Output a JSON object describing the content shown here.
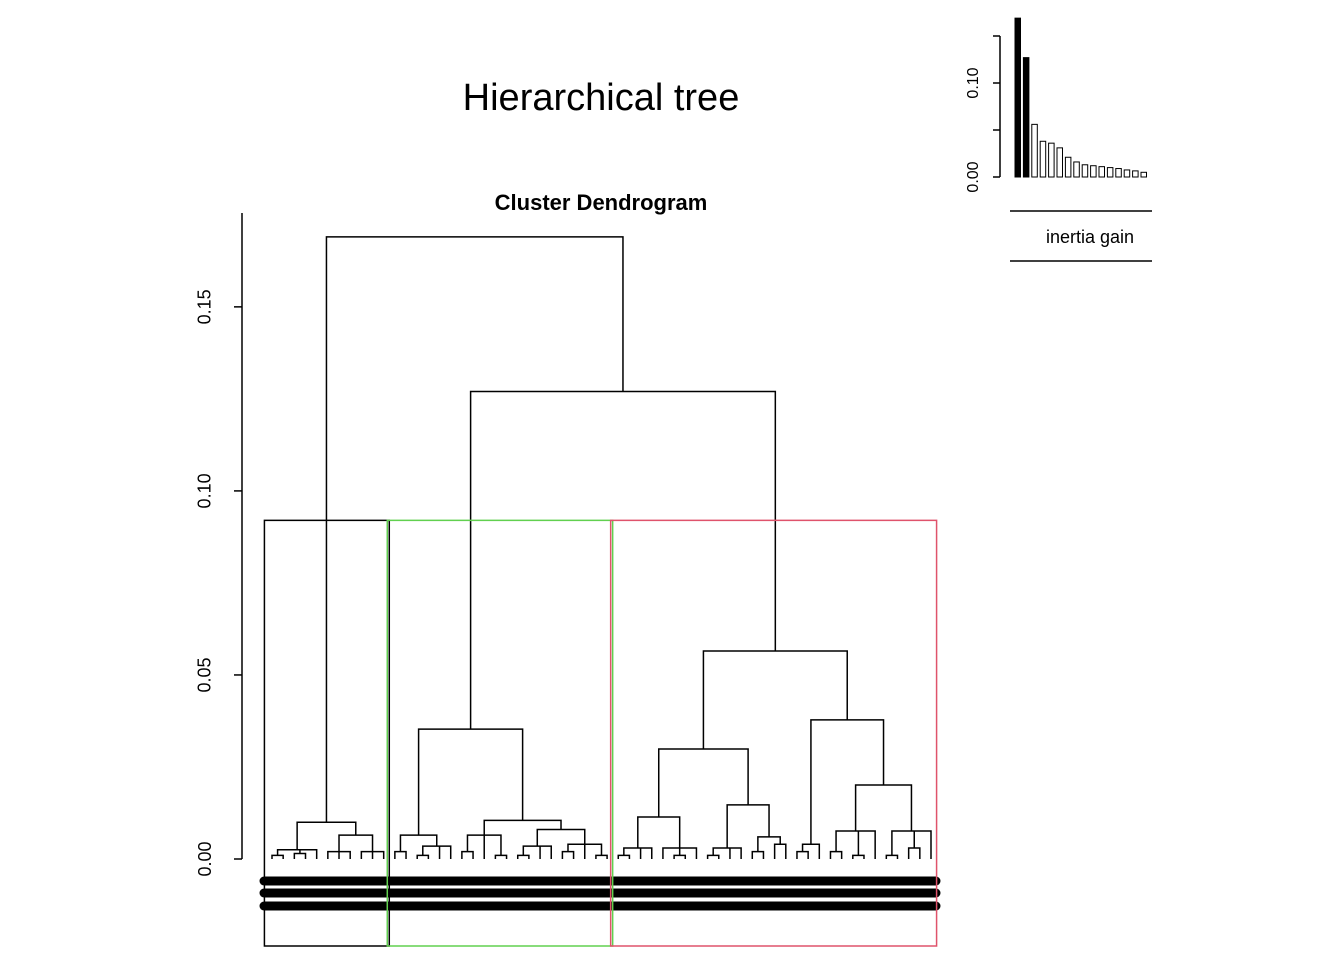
{
  "title": "Hierarchical tree",
  "chart_data": [
    {
      "type": "dendrogram",
      "title": "Cluster Dendrogram",
      "ylim": [
        0,
        0.1755
      ],
      "yticks": [
        {
          "value": 0,
          "label": "0.00"
        },
        {
          "value": 0.05,
          "label": "0.05"
        },
        {
          "value": 0.1,
          "label": "0.10"
        },
        {
          "value": 0.15,
          "label": "0.15"
        }
      ],
      "cut_height": 0.092,
      "cluster_colors": [
        "#000000",
        "#61D04F",
        "#DF536B"
      ],
      "tree": {
        "height": 0.169,
        "children": [
          {
            "height": 0.01,
            "children": [
              {
                "height": 0.0025,
                "children": [
                  {
                    "height": 0.001,
                    "children": [
                      {
                        "height": 0
                      },
                      {
                        "height": 0
                      }
                    ]
                  },
                  {
                    "height": 0.0015,
                    "children": [
                      {
                        "height": 0
                      },
                      {
                        "height": 0
                      }
                    ]
                  },
                  {
                    "height": 0
                  }
                ]
              },
              {
                "height": 0.0065,
                "children": [
                  {
                    "height": 0.002,
                    "children": [
                      {
                        "height": 0
                      },
                      {
                        "height": 0
                      },
                      {
                        "height": 0
                      }
                    ]
                  },
                  {
                    "height": 0.002,
                    "children": [
                      {
                        "height": 0
                      },
                      {
                        "height": 0
                      },
                      {
                        "height": 0
                      }
                    ]
                  }
                ]
              }
            ]
          },
          {
            "height": 0.127,
            "children": [
              {
                "height": 0.0353,
                "children": [
                  {
                    "height": 0.0065,
                    "children": [
                      {
                        "height": 0.002,
                        "children": [
                          {
                            "height": 0
                          },
                          {
                            "height": 0
                          }
                        ]
                      },
                      {
                        "height": 0.0035,
                        "children": [
                          {
                            "height": 0.001,
                            "children": [
                              {
                                "height": 0
                              },
                              {
                                "height": 0
                              }
                            ]
                          },
                          {
                            "height": 0
                          },
                          {
                            "height": 0
                          }
                        ]
                      }
                    ]
                  },
                  {
                    "height": 0.0105,
                    "children": [
                      {
                        "height": 0.0065,
                        "children": [
                          {
                            "height": 0.002,
                            "children": [
                              {
                                "height": 0
                              },
                              {
                                "height": 0
                              }
                            ]
                          },
                          {
                            "height": 0
                          },
                          {
                            "height": 0.001,
                            "children": [
                              {
                                "height": 0
                              },
                              {
                                "height": 0
                              }
                            ]
                          }
                        ]
                      },
                      {
                        "height": 0.008,
                        "children": [
                          {
                            "height": 0.0035,
                            "children": [
                              {
                                "height": 0.001,
                                "children": [
                                  {
                                    "height": 0
                                  },
                                  {
                                    "height": 0
                                  }
                                ]
                              },
                              {
                                "height": 0
                              },
                              {
                                "height": 0
                              }
                            ]
                          },
                          {
                            "height": 0.004,
                            "children": [
                              {
                                "height": 0.002,
                                "children": [
                                  {
                                    "height": 0
                                  },
                                  {
                                    "height": 0
                                  }
                                ]
                              },
                              {
                                "height": 0
                              },
                              {
                                "height": 0.001,
                                "children": [
                                  {
                                    "height": 0
                                  },
                                  {
                                    "height": 0
                                  }
                                ]
                              }
                            ]
                          }
                        ]
                      }
                    ]
                  }
                ]
              },
              {
                "height": 0.0565,
                "children": [
                  {
                    "height": 0.0299,
                    "children": [
                      {
                        "height": 0.0114,
                        "children": [
                          {
                            "height": 0.003,
                            "children": [
                              {
                                "height": 0.001,
                                "children": [
                                  {
                                    "height": 0
                                  },
                                  {
                                    "height": 0
                                  }
                                ]
                              },
                              {
                                "height": 0
                              },
                              {
                                "height": 0
                              }
                            ]
                          },
                          {
                            "height": 0.003,
                            "children": [
                              {
                                "height": 0
                              },
                              {
                                "height": 0.001,
                                "children": [
                                  {
                                    "height": 0
                                  },
                                  {
                                    "height": 0
                                  }
                                ]
                              },
                              {
                                "height": 0
                              }
                            ]
                          }
                        ]
                      },
                      {
                        "height": 0.0147,
                        "children": [
                          {
                            "height": 0.003,
                            "children": [
                              {
                                "height": 0.001,
                                "children": [
                                  {
                                    "height": 0
                                  },
                                  {
                                    "height": 0
                                  }
                                ]
                              },
                              {
                                "height": 0
                              },
                              {
                                "height": 0
                              }
                            ]
                          },
                          {
                            "height": 0.006,
                            "children": [
                              {
                                "height": 0.002,
                                "children": [
                                  {
                                    "height": 0
                                  },
                                  {
                                    "height": 0
                                  }
                                ]
                              },
                              {
                                "height": 0.004,
                                "children": [
                                  {
                                    "height": 0
                                  },
                                  {
                                    "height": 0
                                  }
                                ]
                              }
                            ]
                          }
                        ]
                      }
                    ]
                  },
                  {
                    "height": 0.0378,
                    "children": [
                      {
                        "height": 0.004,
                        "children": [
                          {
                            "height": 0.002,
                            "children": [
                              {
                                "height": 0
                              },
                              {
                                "height": 0
                              }
                            ]
                          },
                          {
                            "height": 0
                          }
                        ]
                      },
                      {
                        "height": 0.0201,
                        "children": [
                          {
                            "height": 0.0076,
                            "children": [
                              {
                                "height": 0.002,
                                "children": [
                                  {
                                    "height": 0
                                  },
                                  {
                                    "height": 0
                                  }
                                ]
                              },
                              {
                                "height": 0.001,
                                "children": [
                                  {
                                    "height": 0
                                  },
                                  {
                                    "height": 0
                                  }
                                ]
                              },
                              {
                                "height": 0
                              }
                            ]
                          },
                          {
                            "height": 0.0076,
                            "children": [
                              {
                                "height": 0.001,
                                "children": [
                                  {
                                    "height": 0
                                  },
                                  {
                                    "height": 0
                                  }
                                ]
                              },
                              {
                                "height": 0.003,
                                "children": [
                                  {
                                    "height": 0
                                  },
                                  {
                                    "height": 0
                                  }
                                ]
                              },
                              {
                                "height": 0
                              }
                            ]
                          }
                        ]
                      }
                    ]
                  }
                ]
              }
            ]
          }
        ]
      }
    },
    {
      "type": "bar",
      "xlabel": "inertia gain",
      "values": [
        0.169,
        0.127,
        0.056,
        0.038,
        0.036,
        0.031,
        0.021,
        0.016,
        0.013,
        0.012,
        0.011,
        0.01,
        0.009,
        0.0075,
        0.0065,
        0.005
      ],
      "colors": [
        "#000000",
        "#000000",
        "#ffffff",
        "#ffffff",
        "#ffffff",
        "#ffffff",
        "#ffffff",
        "#ffffff",
        "#ffffff",
        "#ffffff",
        "#ffffff",
        "#ffffff",
        "#ffffff",
        "#ffffff",
        "#ffffff",
        "#ffffff"
      ],
      "ylim": [
        0,
        0.15
      ],
      "yticks": [
        {
          "value": 0,
          "label": "0.00"
        },
        {
          "value": 0.05,
          "label": null
        },
        {
          "value": 0.1,
          "label": "0.10"
        },
        {
          "value": 0.15,
          "label": null
        }
      ]
    }
  ]
}
